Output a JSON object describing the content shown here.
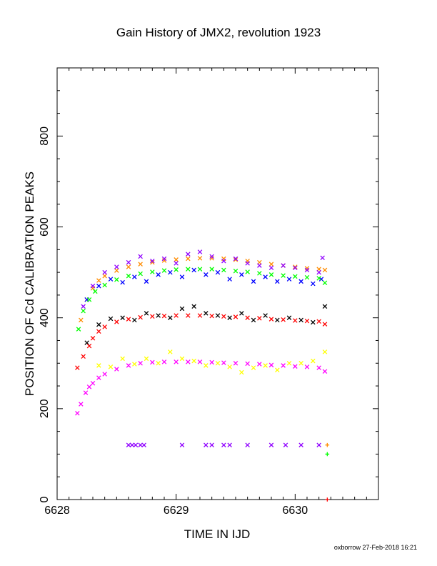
{
  "chart_data": {
    "type": "scatter",
    "title": "Gain History of JMX2, revolution 1923",
    "xlabel": "TIME IN IJD",
    "ylabel": "POSITION OF Cd CALIBRATION PEAKS",
    "xlim": [
      6628,
      6630.7
    ],
    "ylim": [
      0,
      950
    ],
    "xticks": [
      "6628",
      "6629",
      "6630"
    ],
    "yticks": [
      "0",
      "200",
      "400",
      "600",
      "800"
    ],
    "grid": false,
    "footer": "oxborrow 27-Feb-2018 16:21",
    "series": [
      {
        "color": "#ff8c00",
        "marker": "x",
        "x": [
          6628.2,
          6628.25,
          6628.3,
          6628.35,
          6628.4,
          6628.5,
          6628.6,
          6628.7,
          6628.8,
          6628.9,
          6629.0,
          6629.1,
          6629.2,
          6629.3,
          6629.4,
          6629.5,
          6629.6,
          6629.7,
          6629.8,
          6629.9,
          6630.0,
          6630.1,
          6630.2,
          6630.25
        ],
        "y": [
          395,
          440,
          465,
          482,
          492,
          504,
          512,
          518,
          522,
          526,
          528,
          530,
          531,
          531,
          530,
          528,
          525,
          522,
          518,
          515,
          512,
          509,
          507,
          505
        ]
      },
      {
        "color": "#9000ff",
        "marker": "x",
        "x": [
          6628.22,
          6628.3,
          6628.4,
          6628.5,
          6628.6,
          6628.7,
          6628.8,
          6628.9,
          6629.0,
          6629.1,
          6629.2,
          6629.3,
          6629.4,
          6629.5,
          6629.6,
          6629.7,
          6629.8,
          6629.9,
          6630.0,
          6630.1,
          6630.2,
          6630.23
        ],
        "y": [
          425,
          470,
          500,
          512,
          522,
          535,
          525,
          530,
          520,
          540,
          545,
          535,
          525,
          530,
          520,
          515,
          510,
          515,
          510,
          505,
          500,
          532
        ]
      },
      {
        "color": "#0000ff",
        "marker": "x",
        "x": [
          6628.25,
          6628.35,
          6628.45,
          6628.55,
          6628.65,
          6628.75,
          6628.85,
          6628.95,
          6629.05,
          6629.15,
          6629.25,
          6629.35,
          6629.45,
          6629.55,
          6629.65,
          6629.75,
          6629.85,
          6629.95,
          6630.05,
          6630.15,
          6630.22
        ],
        "y": [
          440,
          470,
          485,
          478,
          490,
          480,
          495,
          500,
          490,
          505,
          495,
          500,
          485,
          495,
          480,
          490,
          480,
          485,
          480,
          475,
          485
        ]
      },
      {
        "color": "#00ff00",
        "marker": "x",
        "x": [
          6628.18,
          6628.22,
          6628.27,
          6628.32,
          6628.4,
          6628.5,
          6628.6,
          6628.7,
          6628.8,
          6628.9,
          6629.0,
          6629.1,
          6629.2,
          6629.3,
          6629.4,
          6629.5,
          6629.6,
          6629.7,
          6629.8,
          6629.9,
          6630.0,
          6630.1,
          6630.2,
          6630.25
        ],
        "y": [
          375,
          415,
          440,
          458,
          472,
          484,
          492,
          497,
          501,
          504,
          506,
          507,
          507,
          507,
          505,
          503,
          501,
          498,
          495,
          493,
          491,
          489,
          487,
          477
        ]
      },
      {
        "color": "#000000",
        "marker": "x",
        "x": [
          6628.25,
          6628.35,
          6628.45,
          6628.55,
          6628.65,
          6628.75,
          6628.85,
          6628.95,
          6629.05,
          6629.15,
          6629.25,
          6629.35,
          6629.45,
          6629.55,
          6629.65,
          6629.75,
          6629.85,
          6629.95,
          6630.05,
          6630.15,
          6630.25
        ],
        "y": [
          345,
          385,
          398,
          400,
          395,
          410,
          405,
          400,
          420,
          425,
          410,
          405,
          400,
          410,
          395,
          405,
          395,
          400,
          395,
          390,
          425
        ]
      },
      {
        "color": "#ff0000",
        "marker": "x",
        "x": [
          6628.17,
          6628.22,
          6628.27,
          6628.3,
          6628.35,
          6628.4,
          6628.5,
          6628.6,
          6628.7,
          6628.8,
          6628.9,
          6629.0,
          6629.1,
          6629.2,
          6629.3,
          6629.4,
          6629.5,
          6629.6,
          6629.7,
          6629.8,
          6629.9,
          6630.0,
          6630.1,
          6630.2,
          6630.25
        ],
        "y": [
          290,
          315,
          338,
          355,
          370,
          380,
          391,
          397,
          401,
          403,
          404,
          405,
          405,
          405,
          404,
          403,
          402,
          400,
          399,
          397,
          396,
          394,
          393,
          392,
          386
        ]
      },
      {
        "color": "#ffff00",
        "marker": "x",
        "x": [
          6628.35,
          6628.45,
          6628.55,
          6628.65,
          6628.75,
          6628.85,
          6628.95,
          6629.05,
          6629.15,
          6629.25,
          6629.35,
          6629.45,
          6629.55,
          6629.65,
          6629.75,
          6629.85,
          6629.95,
          6630.05,
          6630.15,
          6630.25
        ],
        "y": [
          295,
          292,
          310,
          298,
          310,
          300,
          325,
          310,
          305,
          295,
          300,
          292,
          280,
          290,
          295,
          285,
          300,
          300,
          305,
          325
        ]
      },
      {
        "color": "#ff00ff",
        "marker": "x",
        "x": [
          6628.17,
          6628.2,
          6628.24,
          6628.27,
          6628.3,
          6628.35,
          6628.4,
          6628.5,
          6628.6,
          6628.7,
          6628.8,
          6628.9,
          6629.0,
          6629.1,
          6629.2,
          6629.3,
          6629.4,
          6629.5,
          6629.6,
          6629.7,
          6629.8,
          6629.9,
          6630.0,
          6630.1,
          6630.2,
          6630.25
        ],
        "y": [
          190,
          210,
          235,
          248,
          256,
          268,
          276,
          287,
          295,
          300,
          302,
          303,
          303,
          303,
          303,
          302,
          301,
          300,
          299,
          298,
          296,
          295,
          293,
          292,
          290,
          282
        ]
      },
      {
        "color": "#9000ff",
        "marker": "x",
        "x": [
          6628.6,
          6628.63,
          6628.66,
          6628.7,
          6628.73,
          6629.05,
          6629.25,
          6629.3,
          6629.4,
          6629.45,
          6629.6,
          6629.8,
          6629.92,
          6630.05,
          6630.2
        ],
        "y": [
          120,
          120,
          120,
          120,
          120,
          120,
          120,
          120,
          120,
          120,
          120,
          120,
          120,
          120,
          120
        ]
      },
      {
        "color": "#ff8c00",
        "marker": "+",
        "x": [
          6630.27
        ],
        "y": [
          120
        ]
      },
      {
        "color": "#00ff00",
        "marker": "+",
        "x": [
          6630.27
        ],
        "y": [
          100
        ]
      },
      {
        "color": "#ff0000",
        "marker": "+",
        "x": [
          6630.27
        ],
        "y": [
          0
        ]
      }
    ]
  }
}
